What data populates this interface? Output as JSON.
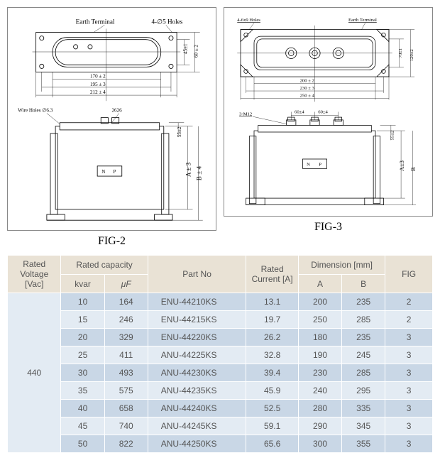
{
  "fig2": {
    "caption": "FIG-2",
    "top": {
      "earth_terminal": "Earth Terminal",
      "holes_label": "4-∅5 Holes",
      "dim_170": "170 ± 2",
      "dim_195": "195 ± 3",
      "dim_212": "212 ± 4",
      "dim_45": "45±1",
      "dim_60": "60 ± 2"
    },
    "bottom": {
      "wire_holes": "Wire Holes ∅6.3",
      "dim_2626": "2626",
      "np_n": "N",
      "np_p": "P",
      "dim_A": "A ± 3",
      "dim_B": "B ± 4",
      "dim_55": "55±2"
    }
  },
  "fig3": {
    "caption": "FIG-3",
    "top": {
      "holes_label": "4-6x9 Holes",
      "earth_terminal": "Earth Terminal",
      "dim_70": "70±1",
      "dim_120": "120±2",
      "dim_200": "200 ± 2",
      "dim_230": "230 ± 3",
      "dim_250": "250 ± 4"
    },
    "bottom": {
      "term_label": "3-M12",
      "dim_60a": "60±4",
      "dim_60b": "60±4",
      "np_n": "N",
      "np_p": "P",
      "dim_55": "55±2",
      "dim_A": "A±3",
      "dim_B": "B"
    }
  },
  "table": {
    "headers": {
      "voltage": "Rated Voltage [Vac]",
      "capacity": "Rated  capacity",
      "kvar": "kvar",
      "uf": "μF",
      "part": "Part  No",
      "current": "Rated Current [A]",
      "dimension": "Dimension  [mm]",
      "A": "A",
      "B": "B",
      "fig": "FIG"
    },
    "voltage": "440",
    "rows": [
      {
        "kvar": "10",
        "uf": "164",
        "part": "ENU-44210KS",
        "current": "13.1",
        "A": "200",
        "B": "235",
        "fig": "2"
      },
      {
        "kvar": "15",
        "uf": "246",
        "part": "ENU-44215KS",
        "current": "19.7",
        "A": "250",
        "B": "285",
        "fig": "2"
      },
      {
        "kvar": "20",
        "uf": "329",
        "part": "ENU-44220KS",
        "current": "26.2",
        "A": "180",
        "B": "235",
        "fig": "3"
      },
      {
        "kvar": "25",
        "uf": "411",
        "part": "ANU-44225KS",
        "current": "32.8",
        "A": "190",
        "B": "245",
        "fig": "3"
      },
      {
        "kvar": "30",
        "uf": "493",
        "part": "ANU-44230KS",
        "current": "39.4",
        "A": "230",
        "B": "285",
        "fig": "3"
      },
      {
        "kvar": "35",
        "uf": "575",
        "part": "ANU-44235KS",
        "current": "45.9",
        "A": "240",
        "B": "295",
        "fig": "3"
      },
      {
        "kvar": "40",
        "uf": "658",
        "part": "ANU-44240KS",
        "current": "52.5",
        "A": "280",
        "B": "335",
        "fig": "3"
      },
      {
        "kvar": "45",
        "uf": "740",
        "part": "ANU-44245KS",
        "current": "59.1",
        "A": "290",
        "B": "345",
        "fig": "3"
      },
      {
        "kvar": "50",
        "uf": "822",
        "part": "ANU-44250KS",
        "current": "65.6",
        "A": "300",
        "B": "355",
        "fig": "3"
      }
    ]
  },
  "colors": {
    "header_bg": "#e9e2d5",
    "row_odd_bg": "#c9d7e6",
    "row_even_bg": "#e3ebf3",
    "text": "#555555",
    "border": "#ffffff"
  }
}
